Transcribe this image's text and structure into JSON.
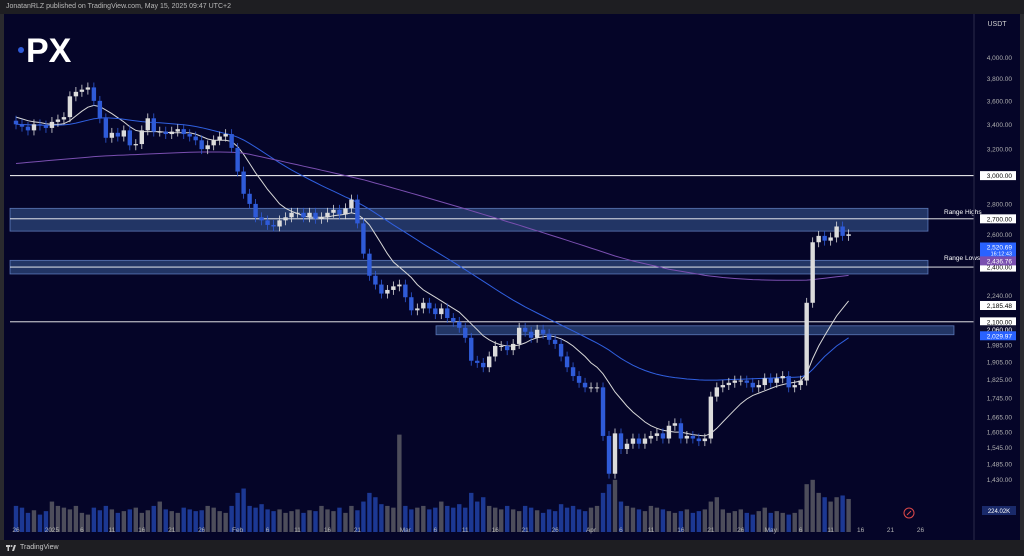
{
  "header": {
    "published": "JonatanRLZ published on TradingView.com, May 15, 2025 09:47 UTC+2"
  },
  "logo": {
    "text": "PX"
  },
  "footer": {
    "brand": "TradingView"
  },
  "colors": {
    "background": "#050528",
    "up_candle": "#dcdcdc",
    "down_candle": "#2f5bd8",
    "zone_fill": "#5a8ed8",
    "ma_fast": "#d8d8d8",
    "ma_mid": "#3060e0",
    "ma_slow": "#7a4fb0",
    "price_label": "#2962ff",
    "axis_text": "#b0b0b0"
  },
  "chart_data": {
    "type": "candlestick",
    "quote": "USDT",
    "y_scale": "log",
    "y_range": [
      1360,
      4300
    ],
    "y_ticks": [
      "4,000.00",
      "3,800.00",
      "3,600.00",
      "3,400.00",
      "3,200.00",
      "3,000.00",
      "2,800.00",
      "2,600.00",
      "2,400.00",
      "2,240.00",
      "1,985.00",
      "1,905.00",
      "1,825.00",
      "1,745.00",
      "1,665.00",
      "1,605.00",
      "1,545.00",
      "1,485.00",
      "1,430.00"
    ],
    "x_labels": [
      {
        "label": "26",
        "bar": 0
      },
      {
        "label": "2025",
        "bar": 6
      },
      {
        "label": "6",
        "bar": 11
      },
      {
        "label": "11",
        "bar": 16
      },
      {
        "label": "16",
        "bar": 21
      },
      {
        "label": "21",
        "bar": 26
      },
      {
        "label": "26",
        "bar": 31
      },
      {
        "label": "Feb",
        "bar": 37
      },
      {
        "label": "6",
        "bar": 42
      },
      {
        "label": "11",
        "bar": 47
      },
      {
        "label": "16",
        "bar": 52
      },
      {
        "label": "21",
        "bar": 57
      },
      {
        "label": "Mar",
        "bar": 65
      },
      {
        "label": "6",
        "bar": 70
      },
      {
        "label": "11",
        "bar": 75
      },
      {
        "label": "16",
        "bar": 80
      },
      {
        "label": "21",
        "bar": 85
      },
      {
        "label": "26",
        "bar": 90
      },
      {
        "label": "Apr",
        "bar": 96
      },
      {
        "label": "6",
        "bar": 101
      },
      {
        "label": "11",
        "bar": 106
      },
      {
        "label": "16",
        "bar": 111
      },
      {
        "label": "21",
        "bar": 116
      },
      {
        "label": "26",
        "bar": 121
      },
      {
        "label": "May",
        "bar": 126
      },
      {
        "label": "6",
        "bar": 131
      },
      {
        "label": "11",
        "bar": 136
      },
      {
        "label": "16",
        "bar": 141
      },
      {
        "label": "21",
        "bar": 146
      },
      {
        "label": "26",
        "bar": 151
      }
    ],
    "ohlc_close": [
      3400,
      3380,
      3350,
      3400,
      3390,
      3370,
      3420,
      3440,
      3460,
      3640,
      3680,
      3700,
      3720,
      3600,
      3450,
      3290,
      3330,
      3300,
      3350,
      3230,
      3240,
      3350,
      3450,
      3340,
      3340,
      3320,
      3340,
      3360,
      3320,
      3300,
      3270,
      3200,
      3230,
      3270,
      3300,
      3320,
      3210,
      3030,
      2870,
      2800,
      2710,
      2690,
      2660,
      2650,
      2690,
      2710,
      2740,
      2740,
      2710,
      2740,
      2700,
      2710,
      2740,
      2760,
      2730,
      2770,
      2830,
      2670,
      2480,
      2350,
      2300,
      2250,
      2270,
      2290,
      2300,
      2230,
      2160,
      2170,
      2200,
      2170,
      2140,
      2170,
      2120,
      2100,
      2070,
      2020,
      1910,
      1900,
      1880,
      1930,
      1980,
      1980,
      1960,
      1990,
      2070,
      2050,
      2020,
      2060,
      2040,
      2010,
      1990,
      1930,
      1880,
      1840,
      1810,
      1790,
      1790,
      1790,
      1590,
      1450,
      1600,
      1540,
      1560,
      1580,
      1560,
      1580,
      1590,
      1600,
      1580,
      1630,
      1640,
      1580,
      1590,
      1580,
      1570,
      1580,
      1750,
      1790,
      1800,
      1810,
      1820,
      1820,
      1810,
      1790,
      1800,
      1830,
      1810,
      1830,
      1840,
      1790,
      1800,
      1820,
      2200,
      2550,
      2590,
      2560,
      2580,
      2650,
      2590,
      2600
    ],
    "ohlc_open": [
      3430,
      3400,
      3380,
      3350,
      3400,
      3390,
      3370,
      3420,
      3440,
      3460,
      3640,
      3680,
      3700,
      3720,
      3600,
      3450,
      3290,
      3330,
      3300,
      3350,
      3230,
      3240,
      3350,
      3450,
      3340,
      3340,
      3320,
      3340,
      3360,
      3320,
      3300,
      3270,
      3200,
      3230,
      3270,
      3300,
      3320,
      3210,
      3030,
      2870,
      2800,
      2710,
      2690,
      2660,
      2650,
      2690,
      2710,
      2740,
      2740,
      2710,
      2740,
      2700,
      2710,
      2740,
      2760,
      2730,
      2770,
      2830,
      2670,
      2480,
      2350,
      2300,
      2250,
      2270,
      2290,
      2300,
      2230,
      2160,
      2170,
      2200,
      2170,
      2140,
      2170,
      2120,
      2100,
      2070,
      2020,
      1910,
      1900,
      1880,
      1930,
      1980,
      1980,
      1960,
      1990,
      2070,
      2050,
      2020,
      2060,
      2040,
      2010,
      1990,
      1930,
      1880,
      1840,
      1810,
      1790,
      1790,
      1790,
      1590,
      1450,
      1600,
      1540,
      1560,
      1580,
      1560,
      1580,
      1590,
      1600,
      1580,
      1630,
      1640,
      1580,
      1590,
      1580,
      1570,
      1580,
      1750,
      1790,
      1800,
      1810,
      1820,
      1820,
      1810,
      1790,
      1800,
      1830,
      1810,
      1830,
      1840,
      1790,
      1800,
      1820,
      2200,
      2550,
      2590,
      2560,
      2580,
      2650,
      2590
    ],
    "volume": [
      30,
      28,
      22,
      25,
      20,
      24,
      35,
      30,
      28,
      26,
      30,
      22,
      20,
      28,
      25,
      30,
      26,
      22,
      24,
      26,
      28,
      22,
      25,
      30,
      35,
      26,
      24,
      22,
      28,
      26,
      24,
      25,
      30,
      28,
      24,
      22,
      30,
      45,
      50,
      30,
      28,
      32,
      26,
      24,
      26,
      22,
      24,
      26,
      22,
      25,
      24,
      30,
      26,
      24,
      28,
      22,
      30,
      25,
      35,
      45,
      40,
      32,
      30,
      28,
      35,
      30,
      26,
      28,
      30,
      26,
      28,
      35,
      30,
      28,
      32,
      28,
      45,
      35,
      40,
      30,
      28,
      26,
      30,
      26,
      24,
      30,
      28,
      25,
      22,
      26,
      24,
      32,
      28,
      30,
      26,
      24,
      28,
      30,
      45,
      55,
      60,
      35,
      30,
      28,
      26,
      24,
      30,
      28,
      26,
      24,
      22,
      24,
      26,
      22,
      24,
      26,
      35,
      40,
      26,
      22,
      24,
      26,
      22,
      20,
      24,
      28,
      22,
      24,
      22,
      20,
      22,
      26,
      55,
      60,
      45,
      40,
      35,
      40,
      42,
      38
    ],
    "volume_spike_bars": [
      {
        "bar": 64,
        "volume": 112
      }
    ],
    "moving_averages": [
      {
        "color_key": "ma_fast",
        "values": [
          3460,
          3445,
          3430,
          3420,
          3415,
          3405,
          3400,
          3398,
          3405,
          3430,
          3470,
          3510,
          3545,
          3560,
          3550,
          3520,
          3490,
          3455,
          3420,
          3380,
          3350,
          3340,
          3340,
          3340,
          3340,
          3335,
          3330,
          3330,
          3330,
          3330,
          3320,
          3300,
          3280,
          3270,
          3270,
          3270,
          3260,
          3220,
          3160,
          3090,
          3020,
          2960,
          2900,
          2850,
          2800,
          2770,
          2750,
          2735,
          2720,
          2710,
          2710,
          2710,
          2712,
          2720,
          2725,
          2730,
          2740,
          2730,
          2700,
          2660,
          2600,
          2540,
          2480,
          2430,
          2400,
          2370,
          2340,
          2300,
          2270,
          2250,
          2230,
          2210,
          2190,
          2170,
          2150,
          2120,
          2090,
          2060,
          2030,
          2010,
          1995,
          1985,
          1980,
          1980,
          1985,
          1995,
          2010,
          2020,
          2025,
          2030,
          2025,
          2015,
          2000,
          1980,
          1955,
          1930,
          1900,
          1880,
          1850,
          1810,
          1770,
          1740,
          1710,
          1685,
          1665,
          1645,
          1630,
          1620,
          1612,
          1608,
          1605,
          1605,
          1600,
          1595,
          1592,
          1590,
          1600,
          1620,
          1645,
          1670,
          1695,
          1720,
          1740,
          1755,
          1765,
          1775,
          1785,
          1795,
          1802,
          1808,
          1812,
          1818,
          1850,
          1920,
          1980,
          2030,
          2080,
          2130,
          2170,
          2210
        ]
      },
      {
        "color_key": "ma_mid",
        "values": [
          3400,
          3398,
          3396,
          3394,
          3393,
          3392,
          3392,
          3393,
          3395,
          3400,
          3410,
          3422,
          3434,
          3446,
          3452,
          3454,
          3452,
          3448,
          3442,
          3435,
          3428,
          3422,
          3418,
          3415,
          3412,
          3408,
          3404,
          3400,
          3396,
          3390,
          3382,
          3372,
          3360,
          3348,
          3336,
          3324,
          3312,
          3295,
          3272,
          3245,
          3215,
          3185,
          3155,
          3125,
          3095,
          3068,
          3042,
          3018,
          2995,
          2972,
          2950,
          2928,
          2908,
          2888,
          2868,
          2848,
          2830,
          2810,
          2788,
          2764,
          2738,
          2712,
          2686,
          2660,
          2636,
          2612,
          2588,
          2564,
          2540,
          2517,
          2495,
          2473,
          2451,
          2429,
          2407,
          2385,
          2363,
          2341,
          2319,
          2297,
          2275,
          2254,
          2234,
          2214,
          2196,
          2178,
          2162,
          2146,
          2130,
          2114,
          2099,
          2084,
          2069,
          2054,
          2039,
          2024,
          2009,
          1994,
          1978,
          1960,
          1940,
          1921,
          1904,
          1889,
          1876,
          1865,
          1856,
          1848,
          1842,
          1837,
          1833,
          1830,
          1827,
          1825,
          1823,
          1822,
          1822,
          1822,
          1823,
          1824,
          1825,
          1826,
          1827,
          1828,
          1829,
          1830,
          1831,
          1832,
          1833,
          1834,
          1835,
          1836,
          1845,
          1870,
          1900,
          1930,
          1955,
          1980,
          2000,
          2020
        ]
      },
      {
        "color_key": "ma_slow",
        "values": [
          3090,
          3094,
          3098,
          3102,
          3106,
          3110,
          3114,
          3118,
          3122,
          3126,
          3130,
          3134,
          3138,
          3142,
          3145,
          3148,
          3150,
          3152,
          3154,
          3156,
          3158,
          3160,
          3162,
          3164,
          3166,
          3168,
          3170,
          3172,
          3174,
          3176,
          3177,
          3178,
          3178,
          3178,
          3178,
          3177,
          3176,
          3173,
          3168,
          3160,
          3150,
          3140,
          3130,
          3120,
          3110,
          3100,
          3090,
          3080,
          3070,
          3060,
          3050,
          3040,
          3030,
          3020,
          3010,
          3000,
          2990,
          2980,
          2970,
          2958,
          2946,
          2934,
          2922,
          2910,
          2898,
          2886,
          2874,
          2862,
          2850,
          2838,
          2826,
          2814,
          2802,
          2790,
          2778,
          2766,
          2754,
          2742,
          2730,
          2718,
          2706,
          2694,
          2682,
          2670,
          2658,
          2646,
          2634,
          2622,
          2610,
          2598,
          2586,
          2574,
          2562,
          2550,
          2538,
          2526,
          2514,
          2502,
          2490,
          2478,
          2466,
          2456,
          2446,
          2436,
          2428,
          2420,
          2412,
          2404,
          2396,
          2388,
          2382,
          2376,
          2370,
          2364,
          2358,
          2352,
          2348,
          2344,
          2340,
          2337,
          2334,
          2332,
          2330,
          2328,
          2327,
          2326,
          2325,
          2324,
          2324,
          2324,
          2324,
          2324,
          2325,
          2328,
          2332,
          2336,
          2340,
          2344,
          2348,
          2352
        ]
      }
    ],
    "zones": [
      {
        "from": 2620,
        "to": 2770,
        "label": "Range Highs",
        "label_at": 2720
      },
      {
        "from": 2360,
        "to": 2440,
        "label": "Range Lows",
        "label_at": 2430
      },
      {
        "from": 2035,
        "to": 2080,
        "label": "",
        "label_at": null
      }
    ],
    "horizontal_lines": [
      {
        "price": 3000,
        "label": "3,000.00"
      },
      {
        "price": 2700,
        "label": "2,700.00"
      },
      {
        "price": 2400,
        "label": "2,400.00"
      },
      {
        "price": 2100,
        "label": "2,100.00"
      }
    ],
    "price_labels": [
      {
        "price": 2520.69,
        "text": "2,520.69",
        "sub": "16:12:43",
        "style": "blue"
      },
      {
        "price": 2436.76,
        "text": "2,436.76",
        "style": "purple"
      },
      {
        "price": 2185.48,
        "text": "2,185.48",
        "style": "white"
      },
      {
        "price": 2060.0,
        "text": "2,060.00",
        "style": "dark"
      },
      {
        "price": 2029.97,
        "text": "2,029.97",
        "style": "blue"
      }
    ],
    "volume_label": "224.02K"
  }
}
